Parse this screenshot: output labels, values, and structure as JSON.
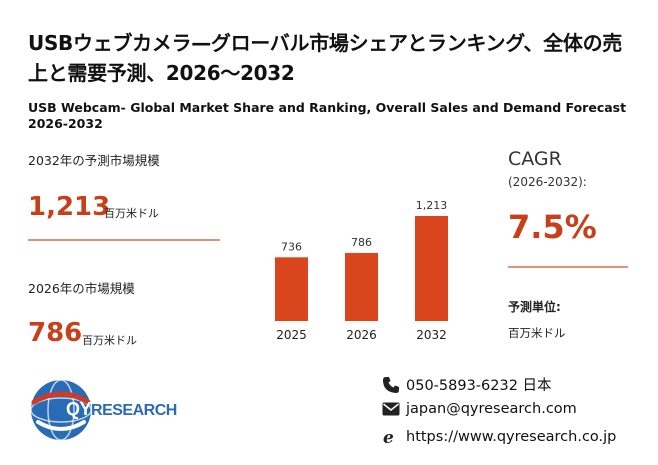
{
  "header": {
    "title": "USBウェブカメラ—グローバル市場シェアとランキング、全体の売上と需要予測、2026～2032",
    "subtitle": "USB Webcam- Global Market Share and Ranking, Overall Sales and Demand Forecast 2026-2032"
  },
  "left": {
    "label_2032": "2032年の予測市場規模",
    "value_2032": "1,213",
    "unit_2032": "百万米ドル",
    "label_2026": "2026年の市場規模",
    "value_2026": "786",
    "unit_2026": "百万米ドル"
  },
  "right": {
    "cagr_label": "CAGR",
    "cagr_range": "(2026-2032):",
    "cagr_value": "7.5%",
    "forecast_unit_label": "予測単位:",
    "forecast_unit_value": "百万米ドル"
  },
  "chart_data": {
    "type": "bar",
    "categories": [
      "2025",
      "2026",
      "2032"
    ],
    "values": [
      736,
      786,
      1213
    ],
    "data_labels": [
      "736",
      "786",
      "1,213"
    ],
    "ylim": [
      0,
      1213
    ],
    "grid": false,
    "bar_color": "#d9461d"
  },
  "logo": {
    "text_qy": "QY",
    "text_research": "RESEARCH",
    "colors": {
      "blue": "#2a6bb5",
      "red": "#d13a27"
    }
  },
  "contact": {
    "phone": "050-5893-6232 日本",
    "email": "japan@qyresearch.com",
    "website": "https://www.qyresearch.co.jp",
    "icons": [
      "phone-icon",
      "email-icon",
      "browser-icon"
    ]
  }
}
